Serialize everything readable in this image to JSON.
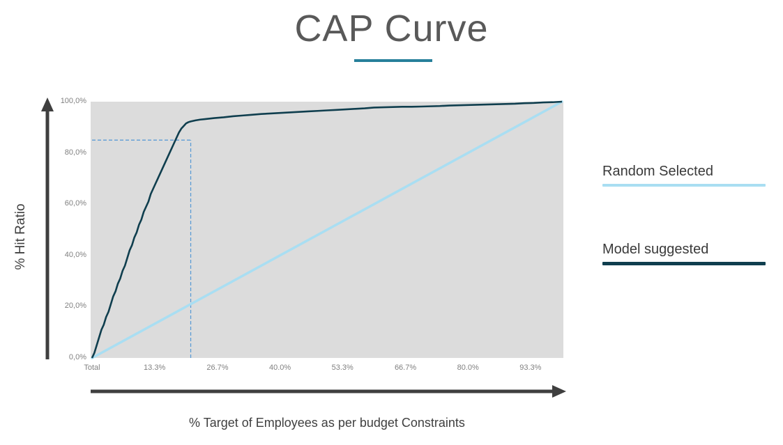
{
  "title": "CAP Curve",
  "y_axis_title": "% Hit Ratio",
  "x_axis_title": "% Target of Employees as per budget Constraints",
  "accent_underline_color": "#27809b",
  "legend": [
    {
      "label": "Random Selected",
      "color": "#a9def2"
    },
    {
      "label": "Model suggested",
      "color": "#0f3e4e"
    }
  ],
  "chart_data": {
    "type": "line",
    "title": "CAP Curve",
    "xlabel": "% Target of Employees as per budget Constraints",
    "ylabel": "% Hit Ratio",
    "xlim": [
      0,
      100
    ],
    "ylim": [
      0,
      100
    ],
    "grid": false,
    "legend_position": "right",
    "plot_bg": "#dcdcdc",
    "x_tick_values": [
      0,
      13.3,
      26.7,
      40.0,
      53.3,
      66.7,
      80.0,
      93.3
    ],
    "x_tick_labels": [
      "Total",
      "13.3%",
      "26.7%",
      "40.0%",
      "53.3%",
      "66.7%",
      "80.0%",
      "93.3%"
    ],
    "y_tick_values": [
      0,
      20,
      40,
      60,
      80,
      100
    ],
    "y_tick_labels": [
      "0,0%",
      "20,0%",
      "40,0%",
      "60,0%",
      "80,0%",
      "100,0%"
    ],
    "reference_lines": {
      "x": 21,
      "y": 85,
      "style": "dashed",
      "color": "#5b9bd5"
    },
    "series": [
      {
        "name": "Random Selected",
        "color": "#a9def2",
        "points": [
          [
            0,
            0
          ],
          [
            100,
            100
          ]
        ]
      },
      {
        "name": "Model suggested",
        "color": "#0f3e4e",
        "points": [
          [
            0,
            0
          ],
          [
            0.5,
            2
          ],
          [
            1,
            5
          ],
          [
            1.5,
            8
          ],
          [
            2,
            11
          ],
          [
            2.5,
            13
          ],
          [
            3,
            16
          ],
          [
            3.5,
            18
          ],
          [
            4,
            21
          ],
          [
            4.5,
            24
          ],
          [
            5,
            26
          ],
          [
            5.5,
            29
          ],
          [
            6,
            31
          ],
          [
            6.5,
            34
          ],
          [
            7,
            36
          ],
          [
            7.5,
            39
          ],
          [
            8,
            42
          ],
          [
            8.5,
            44
          ],
          [
            9,
            47
          ],
          [
            9.5,
            49
          ],
          [
            10,
            52
          ],
          [
            10.5,
            54
          ],
          [
            11,
            57
          ],
          [
            11.5,
            59
          ],
          [
            12,
            61
          ],
          [
            12.5,
            64
          ],
          [
            13,
            66
          ],
          [
            13.5,
            68
          ],
          [
            14,
            70
          ],
          [
            14.5,
            72
          ],
          [
            15,
            74
          ],
          [
            15.5,
            76
          ],
          [
            16,
            78
          ],
          [
            16.5,
            80
          ],
          [
            17,
            82
          ],
          [
            17.5,
            84
          ],
          [
            18,
            86
          ],
          [
            18.5,
            88
          ],
          [
            19,
            89.5
          ],
          [
            19.5,
            90.5
          ],
          [
            20,
            91.5
          ],
          [
            20.5,
            92
          ],
          [
            21,
            92.3
          ],
          [
            22,
            92.7
          ],
          [
            23,
            93
          ],
          [
            24,
            93.2
          ],
          [
            25,
            93.4
          ],
          [
            26,
            93.6
          ],
          [
            28,
            93.9
          ],
          [
            30,
            94.3
          ],
          [
            32,
            94.6
          ],
          [
            34,
            94.9
          ],
          [
            36,
            95.2
          ],
          [
            38,
            95.4
          ],
          [
            40,
            95.6
          ],
          [
            42,
            95.8
          ],
          [
            44,
            96
          ],
          [
            46,
            96.2
          ],
          [
            48,
            96.4
          ],
          [
            50,
            96.6
          ],
          [
            52,
            96.8
          ],
          [
            54,
            97
          ],
          [
            56,
            97.2
          ],
          [
            58,
            97.4
          ],
          [
            60,
            97.7
          ],
          [
            62,
            97.8
          ],
          [
            64,
            97.9
          ],
          [
            66,
            98
          ],
          [
            68,
            98
          ],
          [
            70,
            98.1
          ],
          [
            72,
            98.2
          ],
          [
            74,
            98.3
          ],
          [
            76,
            98.5
          ],
          [
            78,
            98.6
          ],
          [
            80,
            98.7
          ],
          [
            82,
            98.8
          ],
          [
            84,
            98.9
          ],
          [
            86,
            99
          ],
          [
            88,
            99.1
          ],
          [
            90,
            99.2
          ],
          [
            92,
            99.4
          ],
          [
            94,
            99.5
          ],
          [
            96,
            99.7
          ],
          [
            98,
            99.8
          ],
          [
            100,
            100
          ]
        ]
      }
    ]
  }
}
